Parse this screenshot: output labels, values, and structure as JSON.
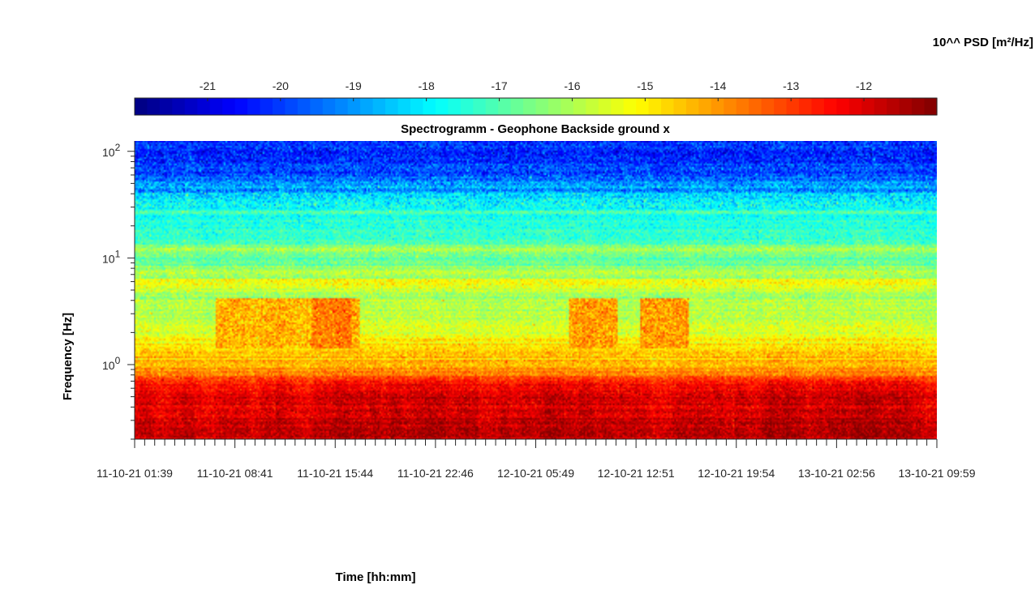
{
  "chart_data": {
    "type": "heatmap",
    "title": "Spectrogramm - Geophone Backside ground x",
    "xlabel": "Time [hh:mm]",
    "ylabel": "Frequency [Hz]",
    "y_scale": "log",
    "ylim": [
      0.2,
      125
    ],
    "y_tick_labels": [
      {
        "exp": "2",
        "value": 100
      },
      {
        "exp": "1",
        "value": 10
      },
      {
        "exp": "0",
        "value": 1
      }
    ],
    "x_tick_labels": [
      "11-10-21  01:39",
      "11-10-21  08:41",
      "11-10-21  15:44",
      "11-10-21  22:46",
      "12-10-21  05:49",
      "12-10-21  12:51",
      "12-10-21  19:54",
      "13-10-21  02:56",
      "13-10-21  09:59"
    ],
    "colorbar": {
      "label": "10^^ PSD [m²/Hz]",
      "colormap": "jet",
      "clim": [
        -22,
        -11
      ],
      "ticks": [
        -21,
        -20,
        -19,
        -18,
        -17,
        -16,
        -15,
        -14,
        -13,
        -12
      ],
      "tick_labels": [
        "-21",
        "-20",
        "-19",
        "-18",
        "-17",
        "-16",
        "-15",
        "-14",
        "-13",
        "-12"
      ]
    },
    "psd_profile_log10": {
      "frequency_hz": [
        0.2,
        0.3,
        0.5,
        0.7,
        0.9,
        1.2,
        1.6,
        2.0,
        3.0,
        4.5,
        5.8,
        6.2,
        8.0,
        10.0,
        12.0,
        15.0,
        20.0,
        27.0,
        35.0,
        45.0,
        60.0,
        80.0,
        100.0,
        125.0
      ],
      "psd": [
        -11.8,
        -11.9,
        -12.1,
        -12.9,
        -14.0,
        -14.6,
        -15.0,
        -15.5,
        -15.9,
        -16.1,
        -15.3,
        -15.8,
        -16.4,
        -16.7,
        -16.3,
        -17.2,
        -17.5,
        -17.6,
        -18.1,
        -18.9,
        -19.7,
        -20.1,
        -20.2,
        -20.1
      ]
    },
    "bands": [
      {
        "label": "",
        "freq_low": 1.15,
        "freq_high": 1.3,
        "psd": -14.6
      },
      {
        "label": "",
        "freq_low": 5.6,
        "freq_high": 6.3,
        "psd": -15.2
      },
      {
        "label": "",
        "freq_low": 11.6,
        "freq_high": 12.6,
        "psd": -16.0
      },
      {
        "label": "",
        "freq_low": 26.0,
        "freq_high": 28.0,
        "psd": -17.0
      }
    ],
    "activity_windows": [
      {
        "t_start": 0.1,
        "t_end": 0.28,
        "psd": -14.3
      },
      {
        "t_start": 0.22,
        "t_end": 0.27,
        "psd": -14.0
      },
      {
        "t_start": 0.22,
        "t_end": 0.27,
        "psd": -14.0
      },
      {
        "t_start": 0.54,
        "t_end": 0.6,
        "psd": -14.1
      },
      {
        "t_start": 0.63,
        "t_end": 0.69,
        "psd": -14.0
      }
    ]
  }
}
